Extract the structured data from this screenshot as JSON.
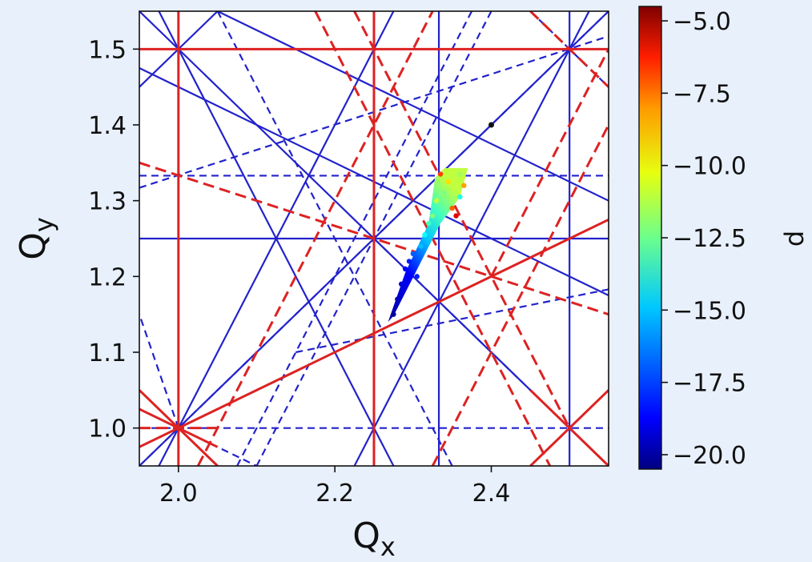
{
  "chart_data": {
    "type": "scatter",
    "title": "",
    "xlabel": "Q",
    "xlabel_sub": "x",
    "ylabel": "Q",
    "ylabel_sub": "y",
    "xlim": [
      1.95,
      2.55
    ],
    "ylim": [
      0.95,
      1.55
    ],
    "xticks": [
      2.0,
      2.2,
      2.4
    ],
    "xtick_labels": [
      "2.0",
      "2.2",
      "2.4"
    ],
    "yticks": [
      1.0,
      1.1,
      1.2,
      1.3,
      1.4,
      1.5
    ],
    "ytick_labels": [
      "1.0",
      "1.1",
      "1.2",
      "1.3",
      "1.4",
      "1.5"
    ],
    "grid": false,
    "colorbar": {
      "label": "d",
      "colormap": "jet",
      "range": [
        -20.5,
        -4.5
      ],
      "ticks": [
        -5.0,
        -7.5,
        -10.0,
        -12.5,
        -15.0,
        -17.5,
        -20.0
      ],
      "tick_labels": [
        "−5.0",
        "−7.5",
        "−10.0",
        "−12.5",
        "−15.0",
        "−17.5",
        "−20.0"
      ]
    },
    "resonance_lines": [
      {
        "color": "#2222cc",
        "style": "solid",
        "x1": 1.95,
        "y1": 1.25,
        "x2": 2.55,
        "y2": 1.25
      },
      {
        "color": "#2222cc",
        "style": "solid",
        "x1": 2.333,
        "y1": 0.95,
        "x2": 2.333,
        "y2": 1.55
      },
      {
        "color": "#2222cc",
        "style": "solid",
        "x1": 2.5,
        "y1": 0.95,
        "x2": 2.5,
        "y2": 1.55
      },
      {
        "color": "#2222cc",
        "style": "solid",
        "x1": 1.95,
        "y1": 0.95,
        "x2": 2.55,
        "y2": 1.55
      },
      {
        "color": "#2222cc",
        "style": "solid",
        "x1": 1.95,
        "y1": 1.55,
        "x2": 2.55,
        "y2": 0.95
      },
      {
        "color": "#2222cc",
        "style": "solid",
        "x1": 1.975,
        "y1": 1.55,
        "x2": 2.275,
        "y2": 0.95
      },
      {
        "color": "#2222cc",
        "style": "solid",
        "x1": 2.275,
        "y1": 1.55,
        "x2": 1.975,
        "y2": 0.95
      },
      {
        "color": "#2222cc",
        "style": "solid",
        "x1": 2.225,
        "y1": 0.95,
        "x2": 2.525,
        "y2": 1.55
      },
      {
        "color": "#2222cc",
        "style": "solid",
        "x1": 1.95,
        "y1": 1.45,
        "x2": 2.05,
        "y2": 1.55
      },
      {
        "color": "#2222cc",
        "style": "solid",
        "x1": 1.95,
        "y1": 1.475,
        "x2": 2.55,
        "y2": 1.175
      },
      {
        "color": "#2222cc",
        "style": "solid",
        "x1": 2.05,
        "y1": 1.55,
        "x2": 2.55,
        "y2": 1.3
      },
      {
        "color": "#2222cc",
        "style": "dashed",
        "x1": 1.95,
        "y1": 1.333,
        "x2": 2.55,
        "y2": 1.333
      },
      {
        "color": "#2222cc",
        "style": "dashed",
        "x1": 1.95,
        "y1": 1.0,
        "x2": 2.55,
        "y2": 1.0
      },
      {
        "color": "#2222cc",
        "style": "dashed",
        "x1": 1.95,
        "y1": 1.317,
        "x2": 2.55,
        "y2": 1.517
      },
      {
        "color": "#2222cc",
        "style": "dashed",
        "x1": 2.1,
        "y1": 0.95,
        "x2": 2.4,
        "y2": 1.55
      },
      {
        "color": "#2222cc",
        "style": "dashed",
        "x1": 2.05,
        "y1": 1.55,
        "x2": 2.35,
        "y2": 0.95
      },
      {
        "color": "#2222cc",
        "style": "dashed",
        "x1": 2.075,
        "y1": 0.95,
        "x2": 2.375,
        "y2": 1.55
      },
      {
        "color": "#2222cc",
        "style": "dashed",
        "x1": 1.95,
        "y1": 0.95,
        "x2": 2.55,
        "y2": 1.55
      },
      {
        "color": "#2222cc",
        "style": "dashed",
        "x1": 2.25,
        "y1": 1.25,
        "x2": 2.55,
        "y2": 0.95
      },
      {
        "color": "#2222cc",
        "style": "dashed",
        "x1": 2.0,
        "y1": 1.0,
        "x2": 2.1,
        "y2": 0.95
      },
      {
        "color": "#2222cc",
        "style": "dashed",
        "x1": 2.0,
        "y1": 1.0,
        "x2": 1.95,
        "y2": 1.15
      },
      {
        "color": "#2222cc",
        "style": "dashed",
        "x1": 2.0,
        "y1": 1.0,
        "x2": 2.05,
        "y2": 0.95
      },
      {
        "color": "#2222cc",
        "style": "dashed",
        "x1": 2.15,
        "y1": 1.1,
        "x2": 2.55,
        "y2": 1.183
      },
      {
        "color": "#2222cc",
        "style": "dashed",
        "x1": 2.45,
        "y1": 1.55,
        "x2": 2.55,
        "y2": 1.45
      },
      {
        "color": "#dd2222",
        "style": "solid",
        "x1": 1.95,
        "y1": 1.5,
        "x2": 2.55,
        "y2": 1.5
      },
      {
        "color": "#dd2222",
        "style": "solid",
        "x1": 2.25,
        "y1": 0.95,
        "x2": 2.25,
        "y2": 1.55
      },
      {
        "color": "#dd2222",
        "style": "solid",
        "x1": 2.0,
        "y1": 0.95,
        "x2": 2.0,
        "y2": 1.55
      },
      {
        "color": "#dd2222",
        "style": "solid",
        "x1": 1.95,
        "y1": 0.975,
        "x2": 2.55,
        "y2": 1.275
      },
      {
        "color": "#dd2222",
        "style": "solid",
        "x1": 1.95,
        "y1": 1.05,
        "x2": 2.05,
        "y2": 0.95
      },
      {
        "color": "#dd2222",
        "style": "solid",
        "x1": 1.95,
        "y1": 1.025,
        "x2": 2.05,
        "y2": 0.975
      },
      {
        "color": "#dd2222",
        "style": "solid",
        "x1": 2.45,
        "y1": 0.95,
        "x2": 2.55,
        "y2": 1.05
      },
      {
        "color": "#dd2222",
        "style": "solid",
        "x1": 2.45,
        "y1": 1.05,
        "x2": 2.55,
        "y2": 0.95
      },
      {
        "color": "#dd2222",
        "style": "dashed",
        "x1": 1.95,
        "y1": 1.35,
        "x2": 2.55,
        "y2": 1.15
      },
      {
        "color": "#dd2222",
        "style": "dashed",
        "x1": 2.025,
        "y1": 0.95,
        "x2": 2.325,
        "y2": 1.55
      },
      {
        "color": "#dd2222",
        "style": "dashed",
        "x1": 2.175,
        "y1": 1.55,
        "x2": 2.475,
        "y2": 0.95
      },
      {
        "color": "#dd2222",
        "style": "dashed",
        "x1": 2.325,
        "y1": 0.95,
        "x2": 2.55,
        "y2": 1.4
      },
      {
        "color": "#dd2222",
        "style": "dashed",
        "x1": 2.225,
        "y1": 1.55,
        "x2": 2.5,
        "y2": 1.0
      },
      {
        "color": "#dd2222",
        "style": "dashed",
        "x1": 2.4,
        "y1": 1.2,
        "x2": 2.55,
        "y2": 1.5
      },
      {
        "color": "#dd2222",
        "style": "dashed",
        "x1": 2.45,
        "y1": 1.55,
        "x2": 2.55,
        "y2": 1.45
      },
      {
        "color": "#dd2222",
        "style": "dashed",
        "x1": 1.95,
        "y1": 1.0,
        "x2": 2.05,
        "y2": 1.0
      }
    ],
    "footprint": {
      "outline": [
        [
          2.268,
          1.14
        ],
        [
          2.275,
          1.148
        ],
        [
          2.335,
          1.27
        ],
        [
          2.36,
          1.305
        ],
        [
          2.37,
          1.343
        ],
        [
          2.34,
          1.343
        ],
        [
          2.328,
          1.33
        ],
        [
          2.32,
          1.27
        ],
        [
          2.29,
          1.205
        ]
      ],
      "points": [
        {
          "x": 2.275,
          "y": 1.15,
          "d": -20.0
        },
        {
          "x": 2.28,
          "y": 1.17,
          "d": -19.5
        },
        {
          "x": 2.285,
          "y": 1.19,
          "d": -19.0
        },
        {
          "x": 2.29,
          "y": 1.21,
          "d": -18.5
        },
        {
          "x": 2.295,
          "y": 1.22,
          "d": -18.0
        },
        {
          "x": 2.3,
          "y": 1.23,
          "d": -17.0
        },
        {
          "x": 2.305,
          "y": 1.2,
          "d": -18.0
        },
        {
          "x": 2.31,
          "y": 1.24,
          "d": -15.5
        },
        {
          "x": 2.315,
          "y": 1.255,
          "d": -14.5
        },
        {
          "x": 2.32,
          "y": 1.27,
          "d": -13.5
        },
        {
          "x": 2.325,
          "y": 1.28,
          "d": -12.5
        },
        {
          "x": 2.33,
          "y": 1.3,
          "d": -11.5
        },
        {
          "x": 2.34,
          "y": 1.31,
          "d": -12.5
        },
        {
          "x": 2.345,
          "y": 1.325,
          "d": -10.0
        },
        {
          "x": 2.35,
          "y": 1.29,
          "d": -8.0
        },
        {
          "x": 2.355,
          "y": 1.28,
          "d": -6.0
        },
        {
          "x": 2.36,
          "y": 1.335,
          "d": -12.0
        },
        {
          "x": 2.365,
          "y": 1.32,
          "d": -9.0
        },
        {
          "x": 2.335,
          "y": 1.335,
          "d": -7.5
        },
        {
          "x": 2.36,
          "y": 1.305,
          "d": -14.0
        }
      ]
    },
    "marker": {
      "x": 2.4,
      "y": 1.4,
      "color": "#111111"
    }
  }
}
